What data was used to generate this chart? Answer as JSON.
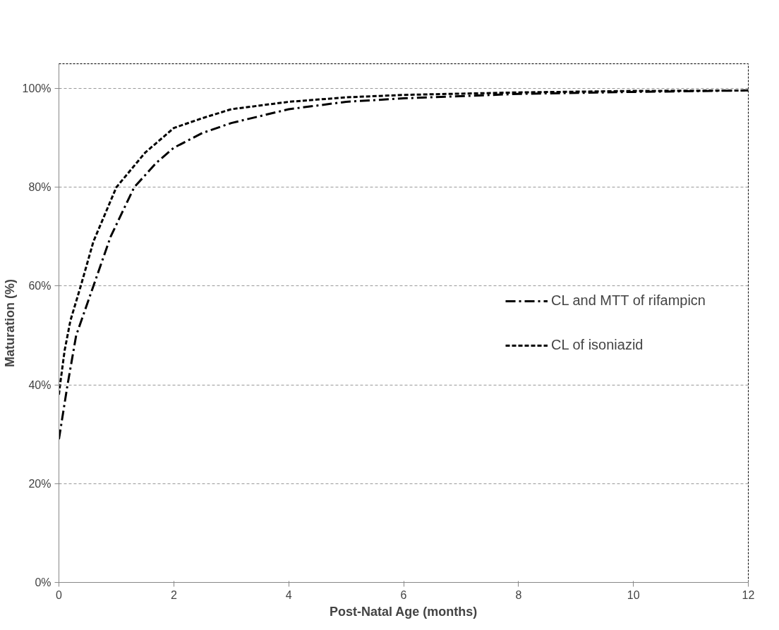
{
  "chart_data": {
    "type": "line",
    "xlabel": "Post-Natal Age (months)",
    "ylabel": "Maturation (%)",
    "xlim": [
      0,
      12
    ],
    "xticks": [
      0,
      2,
      4,
      6,
      8,
      10,
      12
    ],
    "ylim": [
      0,
      105
    ],
    "yticks": [
      {
        "value": 0,
        "label": "0%"
      },
      {
        "value": 20,
        "label": "20%"
      },
      {
        "value": 40,
        "label": "40%"
      },
      {
        "value": 60,
        "label": "60%"
      },
      {
        "value": 80,
        "label": "80%"
      },
      {
        "value": 100,
        "label": "100%"
      }
    ],
    "grid": "y",
    "legend": "right",
    "marker": "none",
    "series": [
      {
        "name": "CL and MTT of rifampicn",
        "color": "#000000",
        "line_style": "dashdot",
        "x": [
          0,
          0.15,
          0.3,
          0.45,
          0.6,
          0.9,
          1.31,
          1.7,
          2,
          2.5,
          3,
          4,
          5,
          6,
          8,
          10,
          12
        ],
        "values": [
          29,
          40,
          50,
          55,
          60,
          70,
          80,
          85,
          88,
          91,
          93,
          95.8,
          97.3,
          98,
          98.9,
          99.3,
          99.6
        ]
      },
      {
        "name": "CL of isoniazid",
        "color": "#000000",
        "line_style": "dashed",
        "x": [
          0,
          0.02,
          0.1,
          0.2,
          0.38,
          0.6,
          1.0,
          1.5,
          2,
          2.5,
          3,
          4,
          5,
          6,
          8,
          10,
          12
        ],
        "values": [
          38,
          40,
          47,
          53,
          60,
          69,
          80,
          87,
          92,
          94,
          95.8,
          97.3,
          98.2,
          98.7,
          99.2,
          99.5,
          99.6
        ]
      }
    ]
  }
}
